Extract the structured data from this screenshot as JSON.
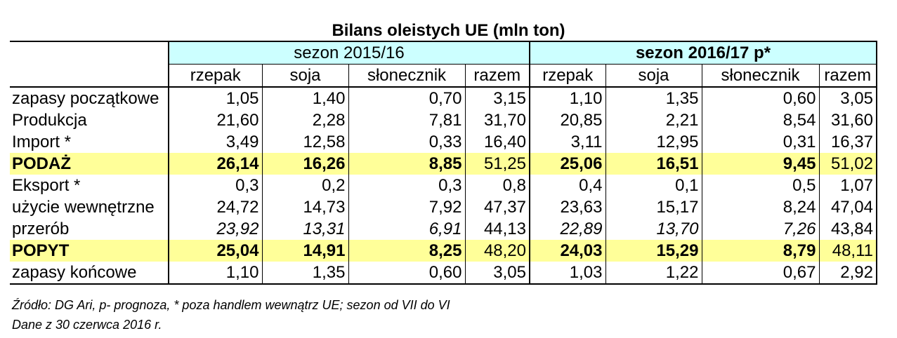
{
  "title": "Bilans oleistych  UE (mln ton)",
  "seasons": [
    "sezon 2015/16",
    "sezon 2016/17 p*"
  ],
  "columns": [
    "rzepak",
    "soja",
    "słonecznik",
    "razem"
  ],
  "rows": [
    {
      "label": "zapasy początkowe",
      "cells": [
        "1,05",
        "1,40",
        "0,70",
        "3,15",
        "1,10",
        "1,35",
        "0,60",
        "3,05"
      ]
    },
    {
      "label": "Produkcja",
      "cells": [
        "21,60",
        "2,28",
        "7,81",
        "31,70",
        "20,85",
        "2,21",
        "8,54",
        "31,60"
      ]
    },
    {
      "label": "Import *",
      "cells": [
        "3,49",
        "12,58",
        "0,33",
        "16,40",
        "3,11",
        "12,95",
        "0,31",
        "16,37"
      ]
    },
    {
      "label": "PODAŻ",
      "cells": [
        "26,14",
        "16,26",
        "8,85",
        "51,25",
        "25,06",
        "16,51",
        "9,45",
        "51,02"
      ]
    },
    {
      "label": "Eksport *",
      "cells": [
        "0,3",
        "0,2",
        "0,3",
        "0,8",
        "0,4",
        "0,1",
        "0,5",
        "1,07"
      ]
    },
    {
      "label": "użycie wewnętrzne",
      "cells": [
        "24,72",
        "14,73",
        "7,92",
        "47,37",
        "23,63",
        "15,17",
        "8,24",
        "47,04"
      ]
    },
    {
      "label": "przerób",
      "cells": [
        "23,92",
        "13,31",
        "6,91",
        "44,13",
        "22,89",
        "13,70",
        "7,26",
        "43,84"
      ]
    },
    {
      "label": "POPYT",
      "cells": [
        "25,04",
        "14,91",
        "8,25",
        "48,20",
        "24,03",
        "15,29",
        "8,79",
        "48,11"
      ]
    },
    {
      "label": "zapasy końcowe",
      "cells": [
        "1,10",
        "1,35",
        "0,60",
        "3,05",
        "1,03",
        "1,22",
        "0,67",
        "2,92"
      ]
    }
  ],
  "highlight_color": "#ffff99",
  "season_header_color": "#ccffff",
  "footnotes": [
    "Źródło: DG Ari, p- prognoza, * poza handlem wewnątrz UE; sezon od VII do VI",
    "Dane z 30 czerwca 2016 r."
  ]
}
